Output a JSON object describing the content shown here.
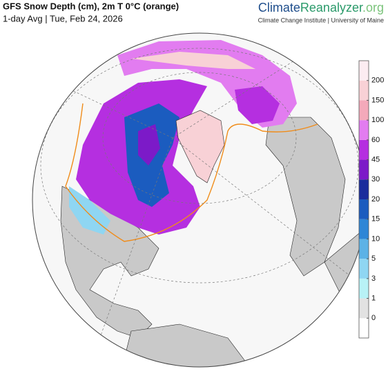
{
  "header": {
    "title": "GFS Snow Depth (cm), 2m T 0°C (orange)",
    "subtitle": "1-day Avg | Tue, Feb 24, 2026",
    "brand": [
      "Climate",
      "Reanalyzer",
      ".org"
    ],
    "attribution": "Climate Change Institute | University of Maine"
  },
  "legend": {
    "ticks": [
      0,
      1,
      3,
      5,
      10,
      15,
      20,
      30,
      45,
      60,
      100,
      150,
      200
    ],
    "colors": [
      "#ffffff",
      "#e2e2e2",
      "#b8f2f6",
      "#8fd6f2",
      "#5cb2e6",
      "#2e86d6",
      "#1b5cbf",
      "#1a2c9c",
      "#7c1ac8",
      "#b52fe0",
      "#e27cf0",
      "#f4a9ba",
      "#f8d1d6",
      "#fcecf1"
    ]
  }
}
